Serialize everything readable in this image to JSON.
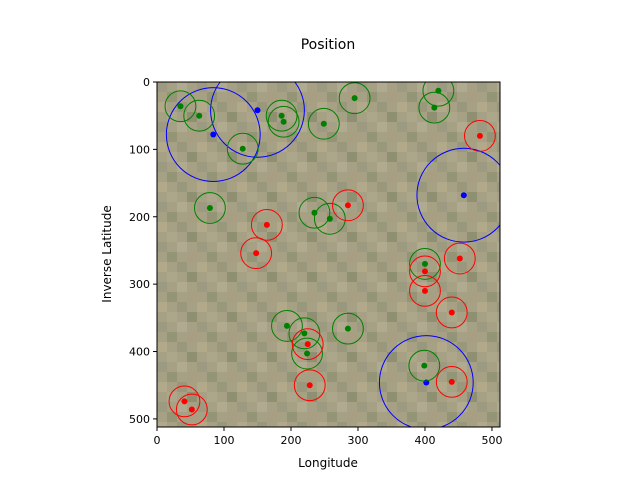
{
  "chart_data": {
    "type": "scatter",
    "title": "Position",
    "xlabel": "Longitude",
    "ylabel": "Inverse Latitude",
    "xlim": [
      0,
      512
    ],
    "ylim": [
      512,
      0
    ],
    "y_inverted": true,
    "xticks": [
      0,
      100,
      200,
      300,
      400,
      500
    ],
    "yticks": [
      0,
      100,
      200,
      300,
      400,
      500
    ],
    "grid": false,
    "legend": "none",
    "background": "satellite-like terrain image",
    "series": [
      {
        "color": "#0000ff",
        "points": [
          {
            "x": 150,
            "y": 42,
            "r": 70
          },
          {
            "x": 84,
            "y": 78,
            "r": 70
          },
          {
            "x": 458,
            "y": 168,
            "r": 70
          },
          {
            "x": 402,
            "y": 446,
            "r": 70
          }
        ]
      },
      {
        "color": "#008000",
        "points": [
          {
            "x": 35,
            "y": 36,
            "r": 23
          },
          {
            "x": 63,
            "y": 50,
            "r": 23
          },
          {
            "x": 128,
            "y": 99,
            "r": 23
          },
          {
            "x": 186,
            "y": 50,
            "r": 23
          },
          {
            "x": 189,
            "y": 59,
            "r": 23
          },
          {
            "x": 249,
            "y": 62,
            "r": 23
          },
          {
            "x": 295,
            "y": 24,
            "r": 23
          },
          {
            "x": 420,
            "y": 13,
            "r": 23
          },
          {
            "x": 414,
            "y": 38,
            "r": 23
          },
          {
            "x": 79,
            "y": 187,
            "r": 23
          },
          {
            "x": 235,
            "y": 194,
            "r": 23
          },
          {
            "x": 258,
            "y": 203,
            "r": 23
          },
          {
            "x": 400,
            "y": 270,
            "r": 23
          },
          {
            "x": 194,
            "y": 362,
            "r": 23
          },
          {
            "x": 220,
            "y": 373,
            "r": 23
          },
          {
            "x": 285,
            "y": 366,
            "r": 23
          },
          {
            "x": 224,
            "y": 403,
            "r": 23
          },
          {
            "x": 399,
            "y": 421,
            "r": 23
          }
        ]
      },
      {
        "color": "#ff0000",
        "points": [
          {
            "x": 482,
            "y": 80,
            "r": 23
          },
          {
            "x": 285,
            "y": 183,
            "r": 23
          },
          {
            "x": 164,
            "y": 212,
            "r": 23
          },
          {
            "x": 148,
            "y": 254,
            "r": 23
          },
          {
            "x": 452,
            "y": 262,
            "r": 23
          },
          {
            "x": 400,
            "y": 281,
            "r": 23
          },
          {
            "x": 400,
            "y": 310,
            "r": 23
          },
          {
            "x": 440,
            "y": 342,
            "r": 23
          },
          {
            "x": 225,
            "y": 389,
            "r": 23
          },
          {
            "x": 228,
            "y": 450,
            "r": 23
          },
          {
            "x": 440,
            "y": 445,
            "r": 23
          },
          {
            "x": 41,
            "y": 474,
            "r": 23
          },
          {
            "x": 52,
            "y": 486,
            "r": 23
          }
        ]
      }
    ]
  }
}
